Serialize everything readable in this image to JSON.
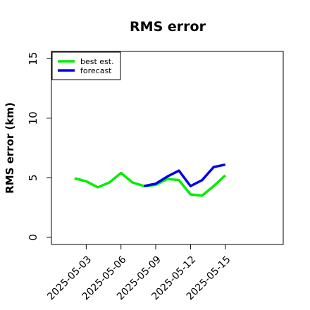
{
  "chart_data": {
    "type": "line",
    "title": "RMS error",
    "ylabel": "RMS error (km)",
    "x": [
      "2025-05-02",
      "2025-05-03",
      "2025-05-04",
      "2025-05-05",
      "2025-05-06",
      "2025-05-07",
      "2025-05-08",
      "2025-05-09",
      "2025-05-10",
      "2025-05-11",
      "2025-05-12",
      "2025-05-13",
      "2025-05-14",
      "2025-05-15"
    ],
    "series": [
      {
        "name": "best est.",
        "color": "#00ee00",
        "values": [
          4.95,
          4.7,
          4.2,
          4.6,
          5.4,
          4.6,
          4.3,
          4.4,
          4.9,
          4.8,
          3.6,
          3.5,
          4.3,
          5.2
        ]
      },
      {
        "name": "forecast",
        "color": "#0000ee",
        "values": [
          null,
          null,
          null,
          null,
          null,
          null,
          4.3,
          4.5,
          5.1,
          5.6,
          4.3,
          4.8,
          5.9,
          6.1
        ]
      }
    ],
    "xlim": [
      "2025-04-30",
      "2025-05-20"
    ],
    "xticks": [
      "2025-05-03",
      "2025-05-06",
      "2025-05-09",
      "2025-05-12",
      "2025-05-15"
    ],
    "ylim": [
      -0.6,
      15.6
    ],
    "yticks": [
      0,
      5,
      10,
      15
    ],
    "legend": "top-left"
  }
}
